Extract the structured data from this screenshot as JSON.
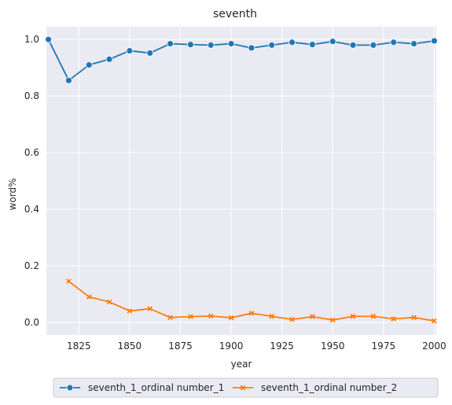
{
  "chart_data": {
    "type": "line",
    "title": "seventh",
    "xlabel": "year",
    "ylabel": "word%",
    "xlim": [
      1809,
      2001
    ],
    "ylim": [
      -0.045,
      1.045
    ],
    "xticks": [
      1825,
      1850,
      1875,
      1900,
      1925,
      1950,
      1975,
      2000
    ],
    "yticks": [
      0.0,
      0.2,
      0.4,
      0.6,
      0.8,
      1.0
    ],
    "xtick_labels": [
      "1825",
      "1850",
      "1875",
      "1900",
      "1925",
      "1950",
      "1975",
      "2000"
    ],
    "ytick_labels": [
      "0.0",
      "0.2",
      "0.4",
      "0.6",
      "0.8",
      "1.0"
    ],
    "grid": true,
    "legend_position": "bottom-center-outside",
    "series": [
      {
        "name": "seventh_1_ordinal number_1",
        "color": "#1f77b4",
        "marker": "circle",
        "x": [
          1810,
          1820,
          1830,
          1840,
          1850,
          1860,
          1870,
          1880,
          1890,
          1900,
          1910,
          1920,
          1930,
          1940,
          1950,
          1960,
          1970,
          1980,
          1990,
          2000
        ],
        "y": [
          1.0,
          0.855,
          0.91,
          0.93,
          0.96,
          0.952,
          0.985,
          0.982,
          0.98,
          0.985,
          0.97,
          0.98,
          0.99,
          0.982,
          0.993,
          0.98,
          0.98,
          0.99,
          0.985,
          0.995
        ]
      },
      {
        "name": "seventh_1_ordinal number_2",
        "color": "#ff7f0e",
        "marker": "x",
        "x": [
          1820,
          1830,
          1840,
          1850,
          1860,
          1870,
          1880,
          1890,
          1900,
          1910,
          1920,
          1930,
          1940,
          1950,
          1960,
          1970,
          1980,
          1990,
          2000
        ],
        "y": [
          0.145,
          0.09,
          0.072,
          0.04,
          0.048,
          0.017,
          0.02,
          0.022,
          0.016,
          0.032,
          0.021,
          0.01,
          0.02,
          0.008,
          0.021,
          0.021,
          0.012,
          0.017,
          0.005
        ]
      }
    ]
  }
}
